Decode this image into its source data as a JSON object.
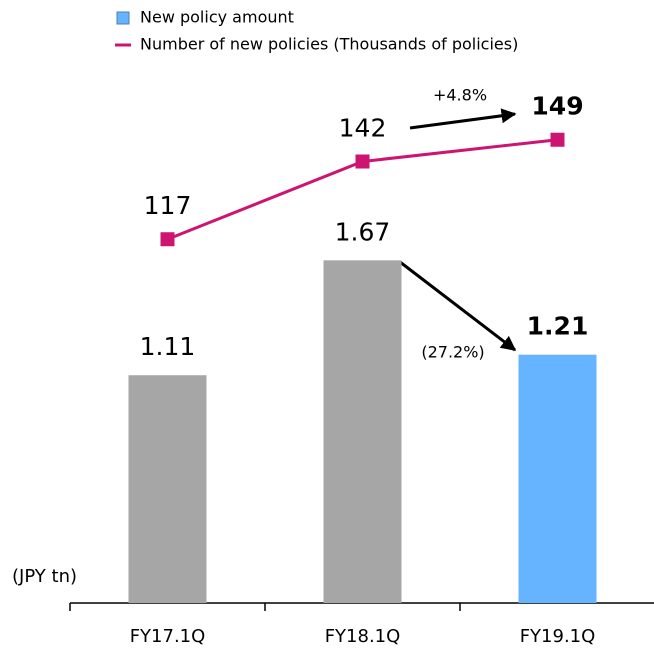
{
  "chart_data": {
    "type": "bar_line",
    "categories": [
      "FY17.1Q",
      "FY18.1Q",
      "FY19.1Q"
    ],
    "series": [
      {
        "name": "New policy amount",
        "type": "bar",
        "colors": [
          "#a6a6a6",
          "#a6a6a6",
          "#66b3ff"
        ],
        "color": "#66b3ff",
        "values": [
          1.11,
          1.67,
          1.21
        ]
      },
      {
        "name": "Number of new policies (Thousands of policies)",
        "type": "line",
        "axis": "y2",
        "color": "#cc1470",
        "values": [
          117,
          142,
          149
        ]
      }
    ],
    "ylim": [
      0,
      2.5
    ],
    "y2lim": [
      0,
      165
    ],
    "highlight_last": true,
    "highlight_color": "#cc1470",
    "annotations": [
      "+4.8%",
      "(27.2%)"
    ],
    "unit_label": "(JPY tn)"
  }
}
